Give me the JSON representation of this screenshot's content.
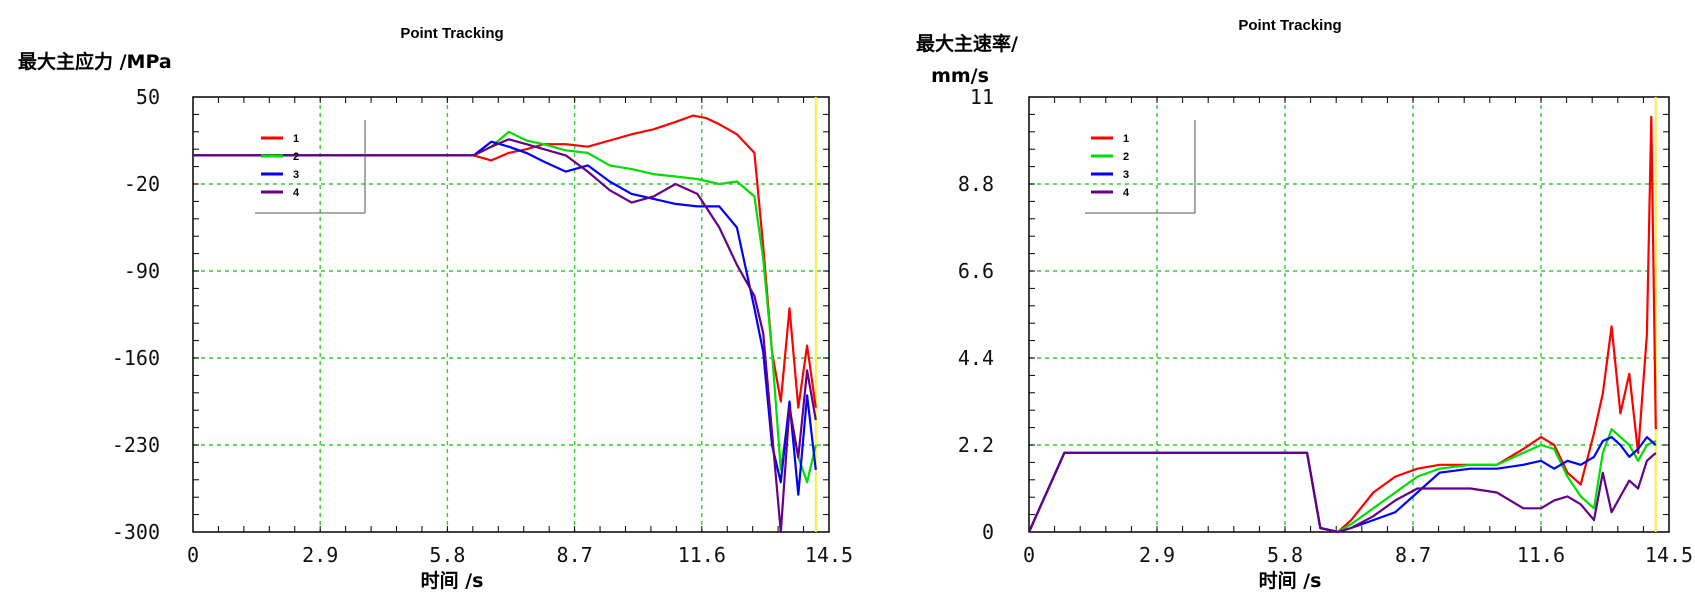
{
  "chart_data": [
    {
      "type": "line",
      "title": "Point Tracking",
      "ylabel": "最大主应力 /MPa",
      "xlabel": "时间 /s",
      "xlim": [
        0,
        14.5
      ],
      "ylim": [
        -300,
        50
      ],
      "xticks": [
        "0",
        "2.9",
        "5.8",
        "8.7",
        "11.6",
        "14.5"
      ],
      "yticks": [
        "50",
        "-20",
        "-90",
        "-160",
        "-230",
        "-300"
      ],
      "xtick_values": [
        0,
        2.9,
        5.8,
        8.7,
        11.6,
        14.5
      ],
      "ytick_values": [
        50,
        -20,
        -90,
        -160,
        -230,
        -300
      ],
      "grid": true,
      "legend_position": "top-left",
      "marker_line_x": 14.2,
      "series": [
        {
          "name": "1",
          "color": "#ff0000",
          "x": [
            0,
            3,
            6.4,
            6.8,
            7.2,
            7.6,
            8.0,
            8.5,
            9.0,
            9.5,
            10.0,
            10.5,
            11.0,
            11.4,
            11.7,
            12.0,
            12.4,
            12.8,
            13.0,
            13.2,
            13.4,
            13.6,
            13.8,
            14.0,
            14.2
          ],
          "y": [
            3,
            3,
            3,
            -1,
            5,
            8,
            12,
            12,
            10,
            15,
            20,
            24,
            30,
            35,
            33,
            28,
            20,
            5,
            -70,
            -155,
            -195,
            -120,
            -200,
            -150,
            -200
          ]
        },
        {
          "name": "2",
          "color": "#00dd00",
          "x": [
            0,
            3,
            6.4,
            6.8,
            7.2,
            7.6,
            8.0,
            8.5,
            9.0,
            9.5,
            10.0,
            10.5,
            11.0,
            11.5,
            12.0,
            12.4,
            12.8,
            13.0,
            13.2,
            13.4,
            13.6,
            13.8,
            14.0,
            14.2
          ],
          "y": [
            3,
            3,
            3,
            10,
            22,
            15,
            12,
            7,
            5,
            -5,
            -8,
            -12,
            -14,
            -16,
            -20,
            -18,
            -30,
            -80,
            -155,
            -250,
            -200,
            -240,
            -260,
            -230
          ]
        },
        {
          "name": "3",
          "color": "#0000ff",
          "x": [
            0,
            3,
            6.4,
            6.8,
            7.2,
            7.6,
            8.0,
            8.5,
            9.0,
            9.5,
            10.0,
            10.5,
            11.0,
            11.5,
            12.0,
            12.4,
            12.8,
            13.0,
            13.2,
            13.4,
            13.6,
            13.8,
            14.0,
            14.2
          ],
          "y": [
            3,
            3,
            3,
            14,
            10,
            5,
            -2,
            -10,
            -5,
            -18,
            -28,
            -32,
            -36,
            -38,
            -38,
            -55,
            -120,
            -155,
            -230,
            -260,
            -195,
            -270,
            -190,
            -250
          ]
        },
        {
          "name": "4",
          "color": "#660088",
          "x": [
            0,
            3,
            6.4,
            6.8,
            7.2,
            7.6,
            8.0,
            8.5,
            9.0,
            9.5,
            10.0,
            10.5,
            11.0,
            11.5,
            12.0,
            12.4,
            12.8,
            13.0,
            13.2,
            13.4,
            13.6,
            13.8,
            14.0,
            14.2
          ],
          "y": [
            3,
            3,
            3,
            10,
            16,
            12,
            8,
            3,
            -10,
            -25,
            -35,
            -30,
            -20,
            -28,
            -55,
            -85,
            -110,
            -140,
            -220,
            -300,
            -200,
            -240,
            -170,
            -210
          ]
        }
      ]
    },
    {
      "type": "line",
      "title": "Point Tracking",
      "ylabel": "最大主速率/",
      "ylabel_unit": "mm/s",
      "xlabel": "时间 /s",
      "xlim": [
        0,
        14.5
      ],
      "ylim": [
        0,
        11
      ],
      "xticks": [
        "0",
        "2.9",
        "5.8",
        "8.7",
        "11.6",
        "14.5"
      ],
      "yticks": [
        "11",
        "8.8",
        "6.6",
        "4.4",
        "2.2",
        "0"
      ],
      "xtick_values": [
        0,
        2.9,
        5.8,
        8.7,
        11.6,
        14.5
      ],
      "ytick_values": [
        11,
        8.8,
        6.6,
        4.4,
        2.2,
        0
      ],
      "grid": true,
      "legend_position": "top-left",
      "marker_line_x": 14.2,
      "series": [
        {
          "name": "1",
          "color": "#ff0000",
          "x": [
            0,
            0.8,
            6.3,
            6.6,
            7.0,
            7.3,
            7.8,
            8.3,
            8.8,
            9.3,
            10.0,
            10.6,
            11.2,
            11.6,
            11.9,
            12.2,
            12.5,
            12.8,
            13.0,
            13.2,
            13.4,
            13.6,
            13.8,
            14.0,
            14.1,
            14.2
          ],
          "y": [
            0,
            2.0,
            2.0,
            0.1,
            0.0,
            0.3,
            1.0,
            1.4,
            1.6,
            1.7,
            1.7,
            1.7,
            2.1,
            2.4,
            2.2,
            1.5,
            1.2,
            2.5,
            3.5,
            5.2,
            3.0,
            4.0,
            2.0,
            5.0,
            10.5,
            2.6
          ]
        },
        {
          "name": "2",
          "color": "#00dd00",
          "x": [
            0,
            0.8,
            6.3,
            6.6,
            7.0,
            7.3,
            7.8,
            8.3,
            8.8,
            9.3,
            10.0,
            10.6,
            11.2,
            11.6,
            11.9,
            12.2,
            12.5,
            12.8,
            13.0,
            13.2,
            13.4,
            13.6,
            13.8,
            14.0,
            14.2
          ],
          "y": [
            0,
            2.0,
            2.0,
            0.1,
            0.0,
            0.2,
            0.6,
            1.0,
            1.4,
            1.6,
            1.7,
            1.7,
            2.0,
            2.2,
            2.1,
            1.4,
            0.9,
            0.6,
            2.0,
            2.6,
            2.4,
            2.2,
            1.8,
            2.2,
            2.3
          ]
        },
        {
          "name": "3",
          "color": "#0000ff",
          "x": [
            0,
            0.8,
            6.3,
            6.6,
            7.0,
            7.3,
            7.8,
            8.3,
            8.8,
            9.3,
            10.0,
            10.6,
            11.2,
            11.6,
            11.9,
            12.2,
            12.5,
            12.8,
            13.0,
            13.2,
            13.4,
            13.6,
            13.8,
            14.0,
            14.2
          ],
          "y": [
            0,
            2.0,
            2.0,
            0.1,
            0.0,
            0.1,
            0.3,
            0.5,
            1.0,
            1.5,
            1.6,
            1.6,
            1.7,
            1.8,
            1.6,
            1.8,
            1.7,
            1.9,
            2.3,
            2.4,
            2.2,
            1.9,
            2.1,
            2.4,
            2.2
          ]
        },
        {
          "name": "4",
          "color": "#660088",
          "x": [
            0,
            0.8,
            6.3,
            6.6,
            7.0,
            7.3,
            7.8,
            8.3,
            8.8,
            9.3,
            10.0,
            10.6,
            11.2,
            11.6,
            11.9,
            12.2,
            12.5,
            12.8,
            13.0,
            13.2,
            13.4,
            13.6,
            13.8,
            14.0,
            14.2
          ],
          "y": [
            0,
            2.0,
            2.0,
            0.1,
            0.0,
            0.1,
            0.4,
            0.8,
            1.1,
            1.1,
            1.1,
            1.0,
            0.6,
            0.6,
            0.8,
            0.9,
            0.7,
            0.3,
            1.5,
            0.5,
            0.9,
            1.3,
            1.1,
            1.8,
            2.0
          ]
        }
      ]
    }
  ]
}
